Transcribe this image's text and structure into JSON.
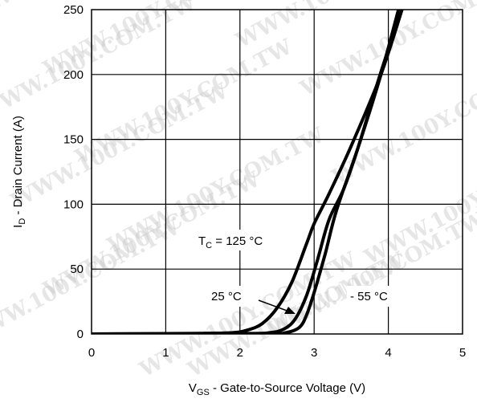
{
  "chart_data": {
    "type": "line",
    "xlabel": {
      "main": "V",
      "sub": "GS",
      "rest": " - Gate-to-Source Voltage (V)"
    },
    "ylabel": {
      "main": "I",
      "sub": "D",
      "rest": " - Drain Current (A)"
    },
    "xlim": [
      0,
      5
    ],
    "ylim": [
      0,
      250
    ],
    "xticks": [
      "0",
      "1",
      "2",
      "3",
      "4",
      "5"
    ],
    "yticks": [
      "0",
      "50",
      "100",
      "150",
      "200",
      "250"
    ],
    "grid": true,
    "series": [
      {
        "name": "TC = 125 °C",
        "points": [
          [
            0,
            0
          ],
          [
            1.5,
            0.5
          ],
          [
            1.9,
            1
          ],
          [
            2.1,
            3
          ],
          [
            2.3,
            8
          ],
          [
            2.5,
            20
          ],
          [
            2.7,
            40
          ],
          [
            2.9,
            70
          ],
          [
            3.0,
            85
          ],
          [
            3.2,
            108
          ],
          [
            3.5,
            145
          ],
          [
            3.9,
            200
          ],
          [
            4.2,
            253
          ]
        ]
      },
      {
        "name": "25 °C",
        "points": [
          [
            0,
            0
          ],
          [
            2.0,
            0.3
          ],
          [
            2.4,
            1
          ],
          [
            2.6,
            4
          ],
          [
            2.75,
            12
          ],
          [
            2.9,
            30
          ],
          [
            3.05,
            58
          ],
          [
            3.2,
            88
          ],
          [
            3.4,
            112
          ],
          [
            3.6,
            145
          ],
          [
            3.9,
            202
          ],
          [
            4.2,
            253
          ]
        ]
      },
      {
        "name": "- 55 °C",
        "points": [
          [
            0,
            0
          ],
          [
            2.3,
            0.2
          ],
          [
            2.6,
            0.8
          ],
          [
            2.8,
            5
          ],
          [
            2.9,
            15
          ],
          [
            3.0,
            32
          ],
          [
            3.15,
            62
          ],
          [
            3.3,
            95
          ],
          [
            3.6,
            145
          ],
          [
            3.9,
            200
          ],
          [
            4.15,
            253
          ]
        ]
      }
    ],
    "annotations": {
      "tc_main": "T",
      "tc_sub": "C",
      "tc_rest": " = 125 °C",
      "t25": "25 °C",
      "tm55": "- 55 °C"
    }
  },
  "watermark": "WWW.100Y.COM.TW"
}
